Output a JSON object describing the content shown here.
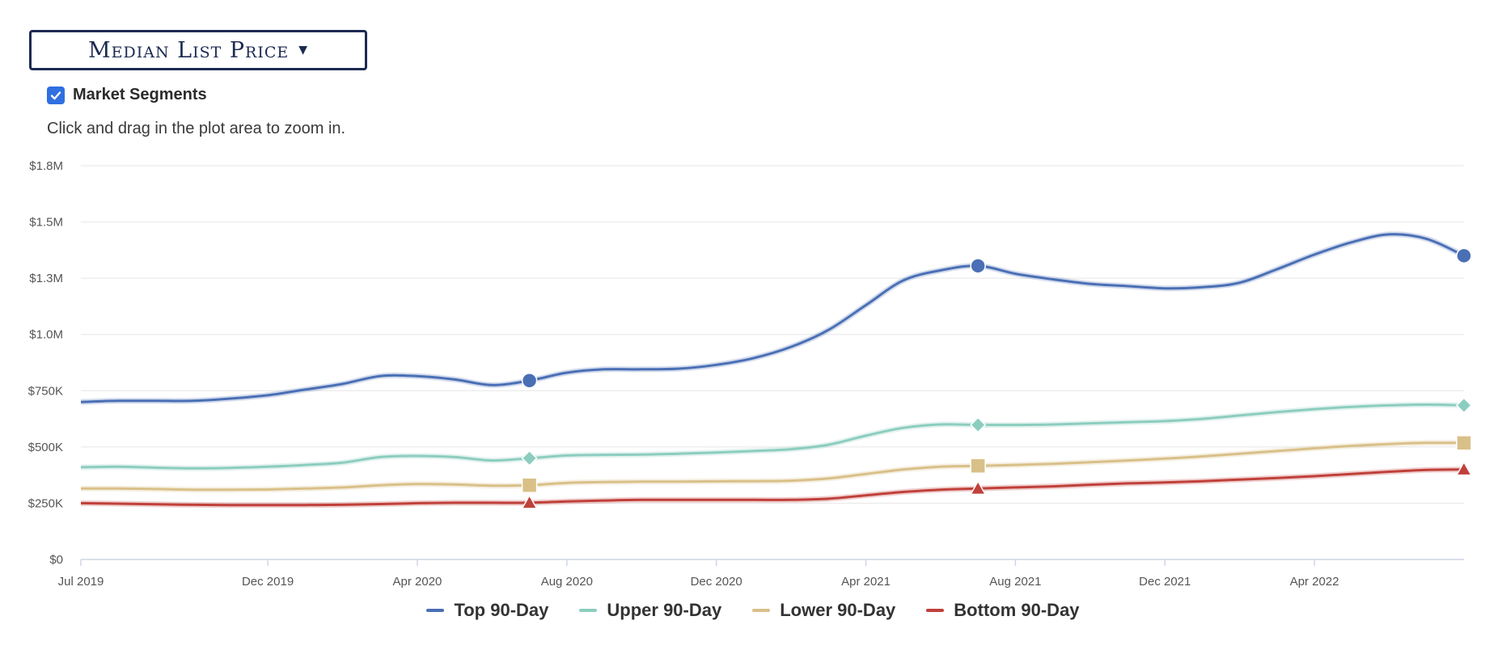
{
  "controls": {
    "metric_label": "Median List Price",
    "segments_label": "Market Segments",
    "segments_checked": true,
    "zoom_hint": "Click and drag in the plot area to zoom in."
  },
  "chart_data": {
    "type": "line",
    "title": "",
    "xlabel": "",
    "ylabel": "",
    "x_ticks": [
      "Jul 2019",
      "Dec 2019",
      "Apr 2020",
      "Aug 2020",
      "Dec 2020",
      "Apr 2021",
      "Aug 2021",
      "Dec 2021",
      "Apr 2022"
    ],
    "y_ticks": [
      "$0",
      "$250K",
      "$500K",
      "$750K",
      "$1.0M",
      "$1.3M",
      "$1.5M",
      "$1.8M"
    ],
    "ylim": [
      0,
      1750000
    ],
    "grid": "horizontal",
    "legend_position": "bottom-center",
    "x": [
      "2019-07",
      "2019-08",
      "2019-09",
      "2019-10",
      "2019-11",
      "2019-12",
      "2020-01",
      "2020-02",
      "2020-03",
      "2020-04",
      "2020-05",
      "2020-06",
      "2020-07",
      "2020-08",
      "2020-09",
      "2020-10",
      "2020-11",
      "2020-12",
      "2021-01",
      "2021-02",
      "2021-03",
      "2021-04",
      "2021-05",
      "2021-06",
      "2021-07",
      "2021-08",
      "2021-09",
      "2021-10",
      "2021-11",
      "2021-12",
      "2022-01",
      "2022-02",
      "2022-03",
      "2022-04",
      "2022-05",
      "2022-06",
      "2022-07",
      "2022-08"
    ],
    "series": [
      {
        "name": "Top 90-Day",
        "color": "#4a6fb5",
        "marker": "circle",
        "values": [
          700000,
          705000,
          705000,
          705000,
          715000,
          730000,
          755000,
          780000,
          815000,
          815000,
          800000,
          775000,
          795000,
          830000,
          845000,
          845000,
          848000,
          865000,
          895000,
          945000,
          1020000,
          1130000,
          1240000,
          1285000,
          1305000,
          1270000,
          1245000,
          1225000,
          1215000,
          1205000,
          1210000,
          1230000,
          1290000,
          1355000,
          1410000,
          1445000,
          1425000,
          1350000
        ]
      },
      {
        "name": "Upper 90-Day",
        "color": "#8ccdbf",
        "marker": "diamond",
        "values": [
          410000,
          412000,
          408000,
          405000,
          407000,
          412000,
          420000,
          430000,
          455000,
          460000,
          455000,
          440000,
          450000,
          462000,
          465000,
          466000,
          470000,
          475000,
          482000,
          490000,
          510000,
          550000,
          585000,
          600000,
          598000,
          598000,
          600000,
          605000,
          610000,
          615000,
          625000,
          640000,
          655000,
          668000,
          678000,
          685000,
          688000,
          685000
        ]
      },
      {
        "name": "Lower 90-Day",
        "color": "#d9c089",
        "marker": "square",
        "values": [
          315000,
          315000,
          313000,
          310000,
          310000,
          311000,
          315000,
          320000,
          330000,
          335000,
          333000,
          328000,
          330000,
          340000,
          344000,
          346000,
          346000,
          347000,
          348000,
          350000,
          360000,
          380000,
          400000,
          412000,
          416000,
          420000,
          425000,
          432000,
          440000,
          448000,
          458000,
          470000,
          482000,
          494000,
          505000,
          513000,
          518000,
          518000
        ]
      },
      {
        "name": "Bottom 90-Day",
        "color": "#c0403a",
        "marker": "triangle",
        "values": [
          250000,
          248000,
          245000,
          243000,
          242000,
          242000,
          242000,
          243000,
          246000,
          250000,
          252000,
          252000,
          252000,
          258000,
          262000,
          265000,
          265000,
          265000,
          265000,
          265000,
          270000,
          285000,
          300000,
          310000,
          315000,
          320000,
          325000,
          332000,
          338000,
          342000,
          348000,
          355000,
          362000,
          370000,
          380000,
          390000,
          398000,
          400000
        ]
      }
    ],
    "marker_points": [
      "2020-07",
      "2021-07",
      "2022-08"
    ]
  }
}
